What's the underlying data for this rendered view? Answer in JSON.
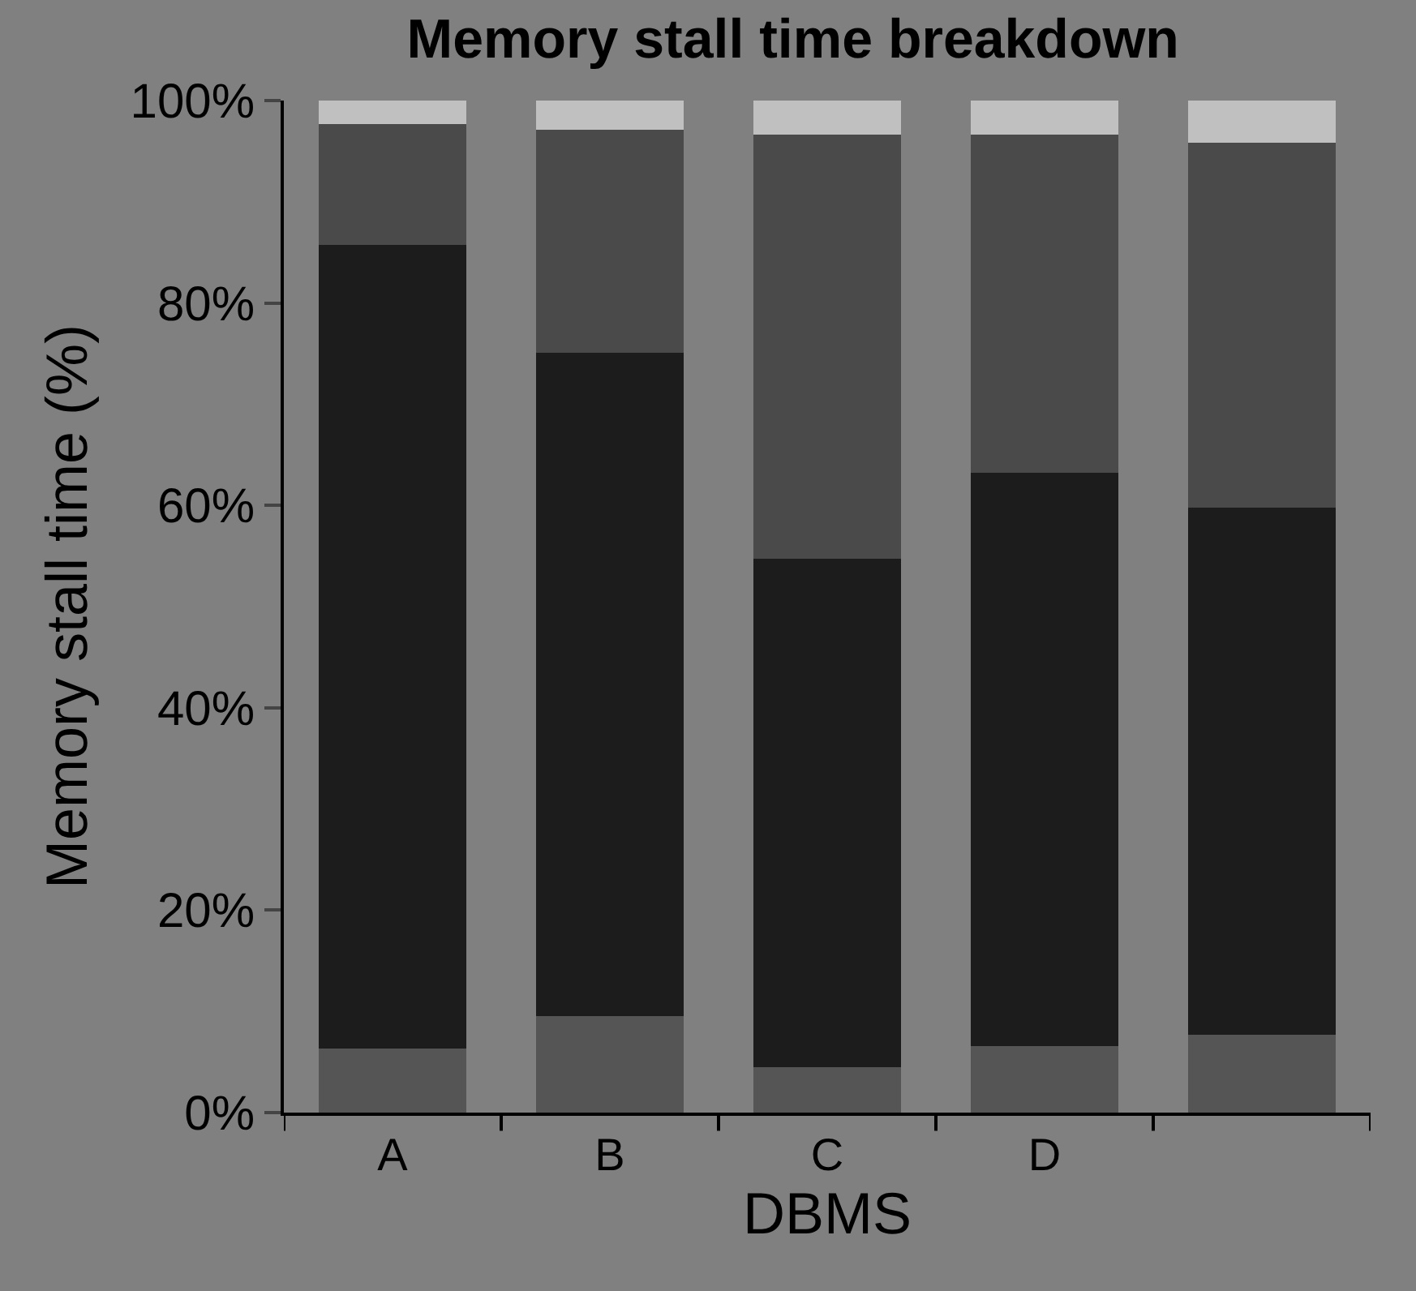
{
  "chart_data": {
    "type": "bar",
    "stacked": true,
    "title": "Memory stall time breakdown",
    "xlabel": "DBMS",
    "ylabel": "Memory stall time (%)",
    "categories": [
      "A",
      "B",
      "C",
      "D",
      null
    ],
    "series": [
      {
        "color": "#555555",
        "values": [
          6.3,
          9.5,
          4.5,
          6.6,
          7.7
        ]
      },
      {
        "color": "#1c1c1c",
        "values": [
          79.4,
          65.6,
          50.2,
          56.6,
          52.1
        ]
      },
      {
        "color": "#4a4a4a",
        "values": [
          12.0,
          22.0,
          41.9,
          33.4,
          36.0
        ]
      },
      {
        "color": "#c0c0c0",
        "values": [
          2.3,
          2.9,
          3.4,
          3.4,
          4.2
        ]
      }
    ],
    "ylim": [
      0,
      100
    ],
    "yticks": [
      {
        "value": 0,
        "label": "0%"
      },
      {
        "value": 20,
        "label": "20%"
      },
      {
        "value": 40,
        "label": "40%"
      },
      {
        "value": 60,
        "label": "60%"
      },
      {
        "value": 80,
        "label": "80%"
      },
      {
        "value": 100,
        "label": "100%"
      }
    ],
    "grid": false
  }
}
